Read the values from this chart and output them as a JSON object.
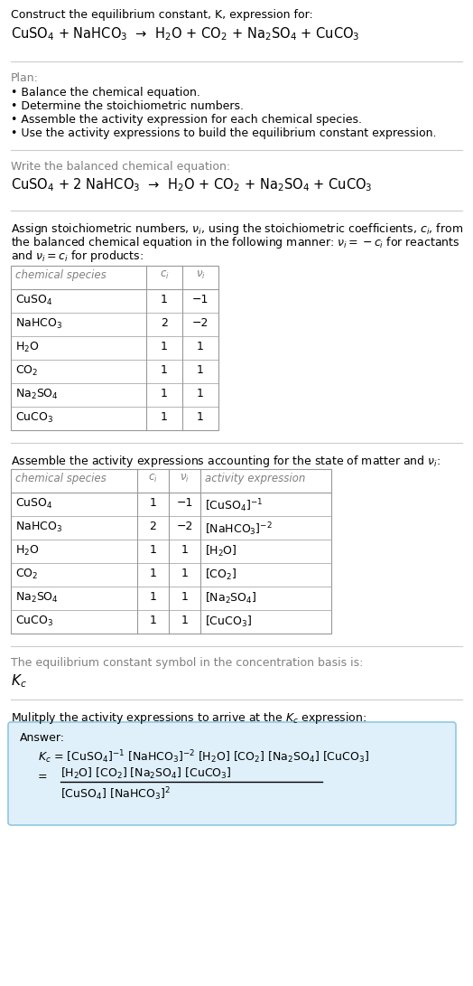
{
  "title_line1": "Construct the equilibrium constant, K, expression for:",
  "title_line2": "CuSO$_4$ + NaHCO$_3$  →  H$_2$O + CO$_2$ + Na$_2$SO$_4$ + CuCO$_3$",
  "plan_header": "Plan:",
  "plan_items": [
    "• Balance the chemical equation.",
    "• Determine the stoichiometric numbers.",
    "• Assemble the activity expression for each chemical species.",
    "• Use the activity expressions to build the equilibrium constant expression."
  ],
  "balanced_header": "Write the balanced chemical equation:",
  "balanced_eq": "CuSO$_4$ + 2 NaHCO$_3$  →  H$_2$O + CO$_2$ + Na$_2$SO$_4$ + CuCO$_3$",
  "stoich_text1": "Assign stoichiometric numbers, $\\nu_i$, using the stoichiometric coefficients, $c_i$, from",
  "stoich_text2": "the balanced chemical equation in the following manner: $\\nu_i = -c_i$ for reactants",
  "stoich_text3": "and $\\nu_i = c_i$ for products:",
  "table1_headers": [
    "chemical species",
    "$c_i$",
    "$\\nu_i$"
  ],
  "table1_data": [
    [
      "CuSO$_4$",
      "1",
      "−1"
    ],
    [
      "NaHCO$_3$",
      "2",
      "−2"
    ],
    [
      "H$_2$O",
      "1",
      "1"
    ],
    [
      "CO$_2$",
      "1",
      "1"
    ],
    [
      "Na$_2$SO$_4$",
      "1",
      "1"
    ],
    [
      "CuCO$_3$",
      "1",
      "1"
    ]
  ],
  "activity_header": "Assemble the activity expressions accounting for the state of matter and $\\nu_i$:",
  "table2_headers": [
    "chemical species",
    "$c_i$",
    "$\\nu_i$",
    "activity expression"
  ],
  "table2_data": [
    [
      "CuSO$_4$",
      "1",
      "−1",
      "[CuSO$_4$]$^{-1}$"
    ],
    [
      "NaHCO$_3$",
      "2",
      "−2",
      "[NaHCO$_3$]$^{-2}$"
    ],
    [
      "H$_2$O",
      "1",
      "1",
      "[H$_2$O]"
    ],
    [
      "CO$_2$",
      "1",
      "1",
      "[CO$_2$]"
    ],
    [
      "Na$_2$SO$_4$",
      "1",
      "1",
      "[Na$_2$SO$_4$]"
    ],
    [
      "CuCO$_3$",
      "1",
      "1",
      "[CuCO$_3$]"
    ]
  ],
  "kc_symbol_header": "The equilibrium constant symbol in the concentration basis is:",
  "kc_symbol": "$K_c$",
  "multiply_header": "Mulitply the activity expressions to arrive at the $K_c$ expression:",
  "answer_label": "Answer:",
  "bg_color": "#ffffff",
  "text_color": "#000000",
  "gray_color": "#808080",
  "answer_box_color": "#dff0fa",
  "answer_box_border": "#90c8e0",
  "table_border_color": "#999999",
  "divider_color": "#cccccc",
  "font_size": 9.0,
  "fig_w": 5.24,
  "fig_h": 10.91,
  "dpi": 100
}
